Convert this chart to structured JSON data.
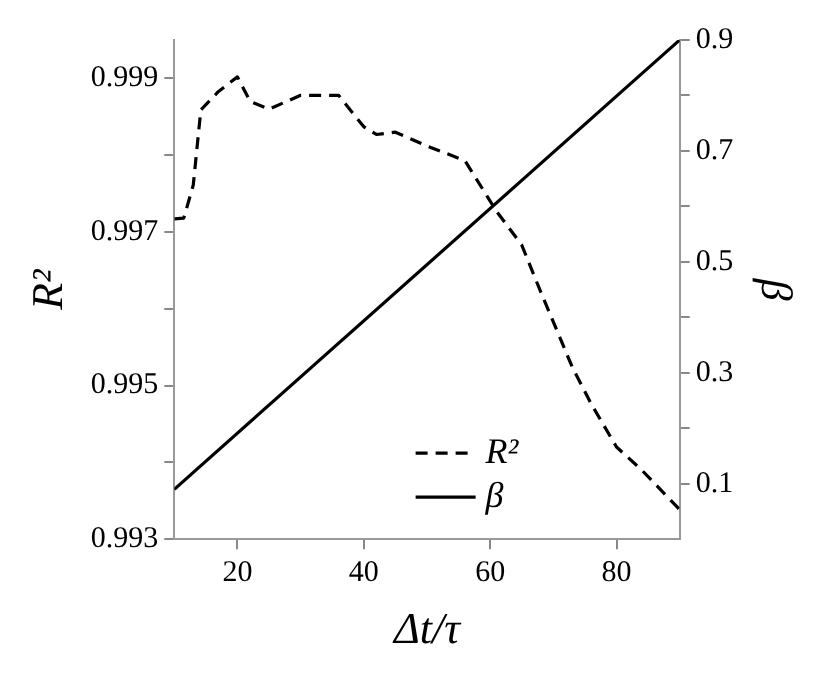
{
  "chart_data": {
    "type": "line",
    "xlabel": "Δt/τ",
    "ylabel": "R²",
    "y2label": "β",
    "xlim": [
      10,
      90
    ],
    "xticks": [
      20,
      40,
      60,
      80
    ],
    "ylim": [
      0.993,
      0.9995
    ],
    "yticks": [
      0.993,
      {
        "value": 0.994,
        "label": null
      },
      0.995,
      {
        "value": 0.996,
        "label": null
      },
      0.997,
      {
        "value": 0.998,
        "label": null
      },
      0.999
    ],
    "y2lim": [
      0,
      0.9
    ],
    "y2ticks": [
      0.1,
      {
        "value": 0.2,
        "label": null
      },
      0.3,
      {
        "value": 0.4,
        "label": null
      },
      0.5,
      {
        "value": 0.6,
        "label": null
      },
      0.7,
      {
        "value": 0.8,
        "label": null
      },
      0.9
    ],
    "grid": false,
    "legend": "bottom",
    "marker": "none",
    "series": [
      {
        "name": "R²",
        "color": "#000000",
        "line_style": "dashed",
        "x": [
          10,
          11.5,
          13,
          14.2,
          17,
          20,
          22,
          25,
          30,
          36,
          40,
          42,
          45,
          50,
          56,
          61,
          65,
          68,
          73,
          76,
          80,
          84,
          89.7,
          90
        ],
        "values": [
          0.99717,
          0.99718,
          0.99761,
          0.99859,
          0.99883,
          0.99902,
          0.9987,
          0.9986,
          0.99878,
          0.99878,
          0.99837,
          0.99827,
          0.9983,
          0.99812,
          0.99793,
          0.99727,
          0.99683,
          0.99622,
          0.99524,
          0.99476,
          0.9942,
          0.9939,
          0.99341,
          0.99338
        ]
      },
      {
        "name": "β",
        "color": "#000000",
        "line_style": "solid",
        "axis": "y2",
        "x": [
          10,
          90
        ],
        "values": [
          0.09,
          0.9
        ]
      }
    ]
  }
}
